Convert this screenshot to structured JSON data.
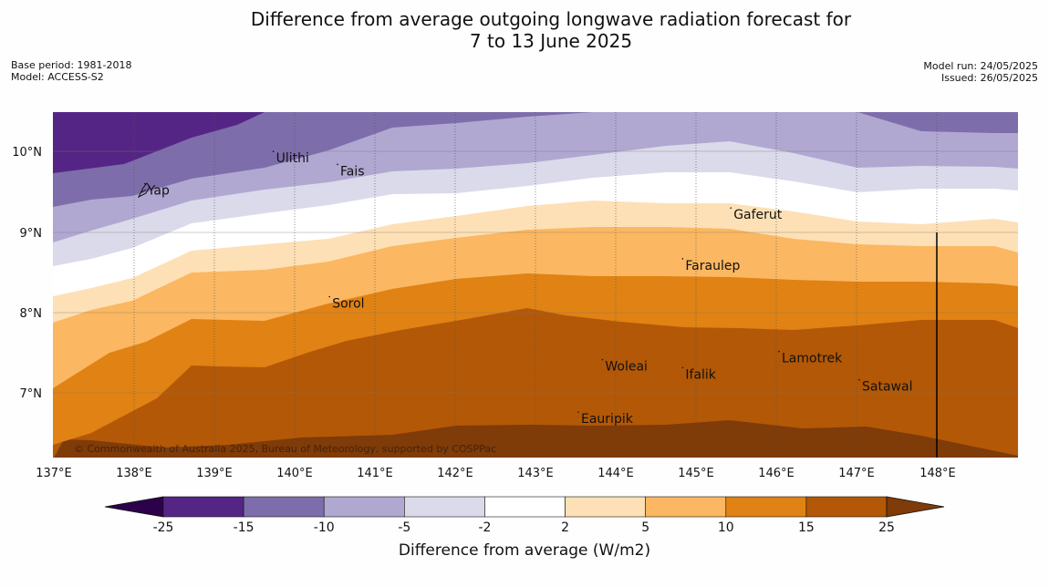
{
  "header": {
    "title_line1": "Difference from average outgoing longwave radiation forecast for",
    "title_line2": "7 to 13 June 2025",
    "base_period": "Base period: 1981-2018",
    "model": "Model: ACCESS-S2",
    "model_run": "Model run: 24/05/2025",
    "issued": "Issued: 26/05/2025"
  },
  "map": {
    "lon_ticks": [
      "137°E",
      "138°E",
      "139°E",
      "140°E",
      "141°E",
      "142°E",
      "143°E",
      "144°E",
      "145°E",
      "146°E",
      "147°E",
      "148°E"
    ],
    "lat_ticks": [
      "10°N",
      "9°N",
      "8°N",
      "7°N"
    ],
    "places": [
      {
        "name": "Ulithi",
        "lon": 139.7,
        "lat": 9.93
      },
      {
        "name": "Fais",
        "lon": 140.5,
        "lat": 9.77
      },
      {
        "name": "Yap",
        "lon": 138.1,
        "lat": 9.53
      },
      {
        "name": "Gaferut",
        "lon": 145.4,
        "lat": 9.23
      },
      {
        "name": "Faraulep",
        "lon": 144.8,
        "lat": 8.6
      },
      {
        "name": "Sorol",
        "lon": 140.4,
        "lat": 8.13
      },
      {
        "name": "Lamotrek",
        "lon": 146.0,
        "lat": 7.45
      },
      {
        "name": "Woleai",
        "lon": 143.8,
        "lat": 7.35
      },
      {
        "name": "Ifalik",
        "lon": 144.8,
        "lat": 7.25
      },
      {
        "name": "Satawal",
        "lon": 147.0,
        "lat": 7.1
      },
      {
        "name": "Eauripik",
        "lon": 143.5,
        "lat": 6.7
      }
    ],
    "copyright": "© Commonwealth of Australia 2025, Bureau of Meteorology, supported by COSPPac",
    "vertical_marker_lon": 148.0
  },
  "colorbar": {
    "ticks": [
      "-25",
      "-15",
      "-10",
      "-5",
      "-2",
      "2",
      "5",
      "10",
      "15",
      "25"
    ],
    "colors": [
      "#552586",
      "#7e6dab",
      "#b0a8d1",
      "#dadaeb",
      "#ffffff",
      "#fee0b6",
      "#fbb761",
      "#e08214",
      "#b35806"
    ],
    "extend_low": "#2d004b",
    "extend_high": "#7f3b08",
    "label": "Difference from average (W/m2)"
  }
}
